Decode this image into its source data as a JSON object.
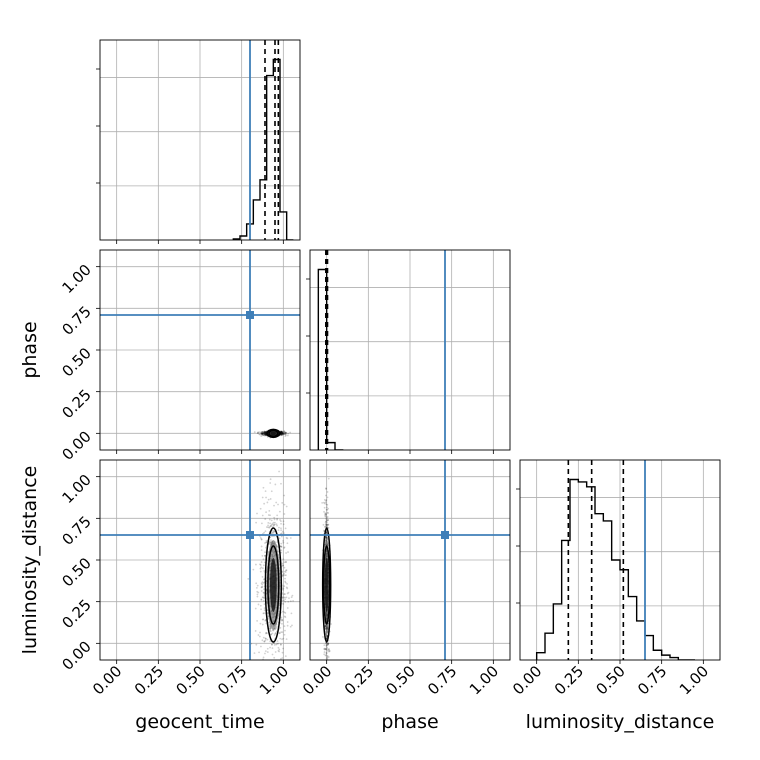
{
  "chart_data": {
    "type": "corner",
    "parameters": [
      "geocent_time",
      "phase",
      "luminosity_distance"
    ],
    "truths": {
      "geocent_time": 0.8,
      "phase": 0.71,
      "luminosity_distance": 0.65
    },
    "axis_range": [
      -0.1,
      1.1
    ],
    "tick_values": [
      0.0,
      0.25,
      0.5,
      0.75,
      1.0
    ],
    "tick_labels": [
      "0.00",
      "0.25",
      "0.50",
      "0.75",
      "1.00"
    ],
    "grid": true,
    "truth_color": "#3f7fb8",
    "hist_color": "#000000",
    "histograms": [
      {
        "parameter": "geocent_time",
        "bin_edges": [
          0.7,
          0.74,
          0.78,
          0.82,
          0.86,
          0.9,
          0.94,
          0.98,
          1.02,
          1.06
        ],
        "counts": [
          0.5,
          2,
          8,
          20,
          30,
          82,
          90,
          14,
          0
        ],
        "quantiles": [
          0.89,
          0.95,
          0.97
        ]
      },
      {
        "parameter": "phase",
        "bin_edges": [
          -0.05,
          0.0,
          0.05,
          0.1
        ],
        "counts": [
          98,
          4,
          0
        ],
        "quantiles": [
          -0.005,
          0.0,
          0.005
        ]
      },
      {
        "parameter": "luminosity_distance",
        "bin_edges": [
          0.0,
          0.05,
          0.1,
          0.15,
          0.2,
          0.25,
          0.3,
          0.35,
          0.4,
          0.45,
          0.5,
          0.55,
          0.6,
          0.65,
          0.7,
          0.75,
          0.8,
          0.85,
          0.9,
          0.95
        ],
        "counts": [
          3,
          11,
          23,
          49,
          74,
          73,
          71,
          60,
          57,
          41,
          37,
          26,
          16,
          10,
          4,
          2,
          1,
          0,
          0
        ],
        "quantiles": [
          0.19,
          0.33,
          0.52
        ]
      }
    ],
    "panels_2d": [
      {
        "x": "geocent_time",
        "y": "phase",
        "center": [
          0.94,
          0.0
        ],
        "spread": [
          0.02,
          0.005
        ]
      },
      {
        "x": "geocent_time",
        "y": "luminosity_distance",
        "center": [
          0.94,
          0.35
        ],
        "spread": [
          0.025,
          0.18
        ]
      },
      {
        "x": "phase",
        "y": "luminosity_distance",
        "center": [
          0.0,
          0.35
        ],
        "spread": [
          0.005,
          0.18
        ]
      }
    ]
  }
}
